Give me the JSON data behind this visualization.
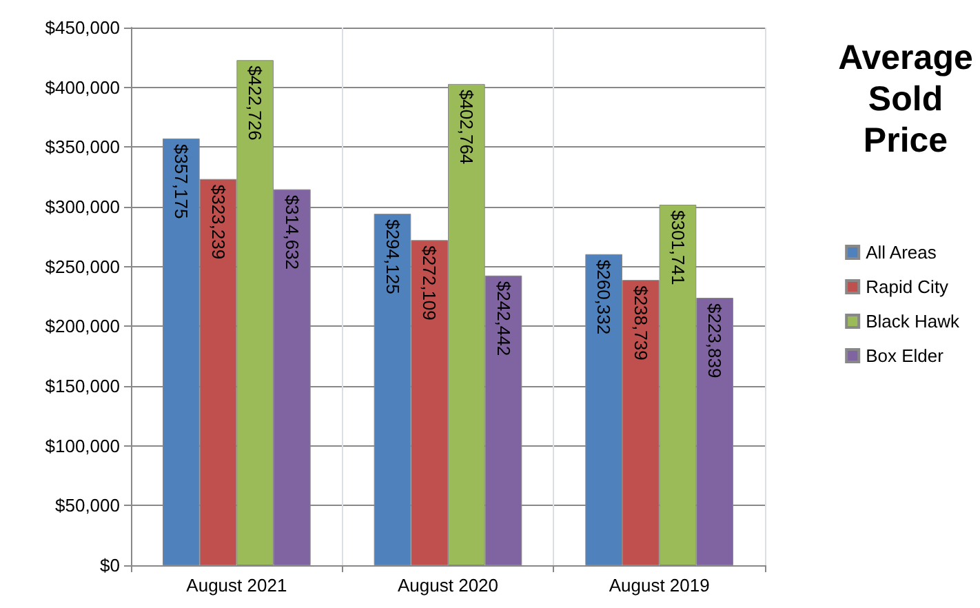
{
  "chart_data": {
    "type": "bar",
    "title": "Average\nSold\nPrice",
    "categories": [
      "August 2021",
      "August 2020",
      "August 2019"
    ],
    "series": [
      {
        "name": "All Areas",
        "color": "#4f81bd",
        "values": [
          357175,
          294125,
          260332
        ],
        "value_labels": [
          "$357,175",
          "$294,125",
          "$260,332"
        ]
      },
      {
        "name": "Rapid City",
        "color": "#c0504d",
        "values": [
          323239,
          272109,
          238739
        ],
        "value_labels": [
          "$323,239",
          "$272,109",
          "$238,739"
        ]
      },
      {
        "name": "Black Hawk",
        "color": "#9bbb59",
        "values": [
          422726,
          402764,
          301741
        ],
        "value_labels": [
          "$422,726",
          "$402,764",
          "$301,741"
        ]
      },
      {
        "name": "Box Elder",
        "color": "#8064a2",
        "values": [
          314632,
          242442,
          223839
        ],
        "value_labels": [
          "$314,632",
          "$242,442",
          "$223,839"
        ]
      }
    ],
    "ylim": [
      0,
      450000
    ],
    "yticks": [
      {
        "value": 0,
        "label": "$0"
      },
      {
        "value": 50000,
        "label": "$50,000"
      },
      {
        "value": 100000,
        "label": "$100,000"
      },
      {
        "value": 150000,
        "label": "$150,000"
      },
      {
        "value": 200000,
        "label": "$200,000"
      },
      {
        "value": 250000,
        "label": "$250,000"
      },
      {
        "value": 300000,
        "label": "$300,000"
      },
      {
        "value": 350000,
        "label": "$350,000"
      },
      {
        "value": 400000,
        "label": "$400,000"
      },
      {
        "value": 450000,
        "label": "$450,000"
      }
    ],
    "grid": true,
    "legend": "right"
  }
}
